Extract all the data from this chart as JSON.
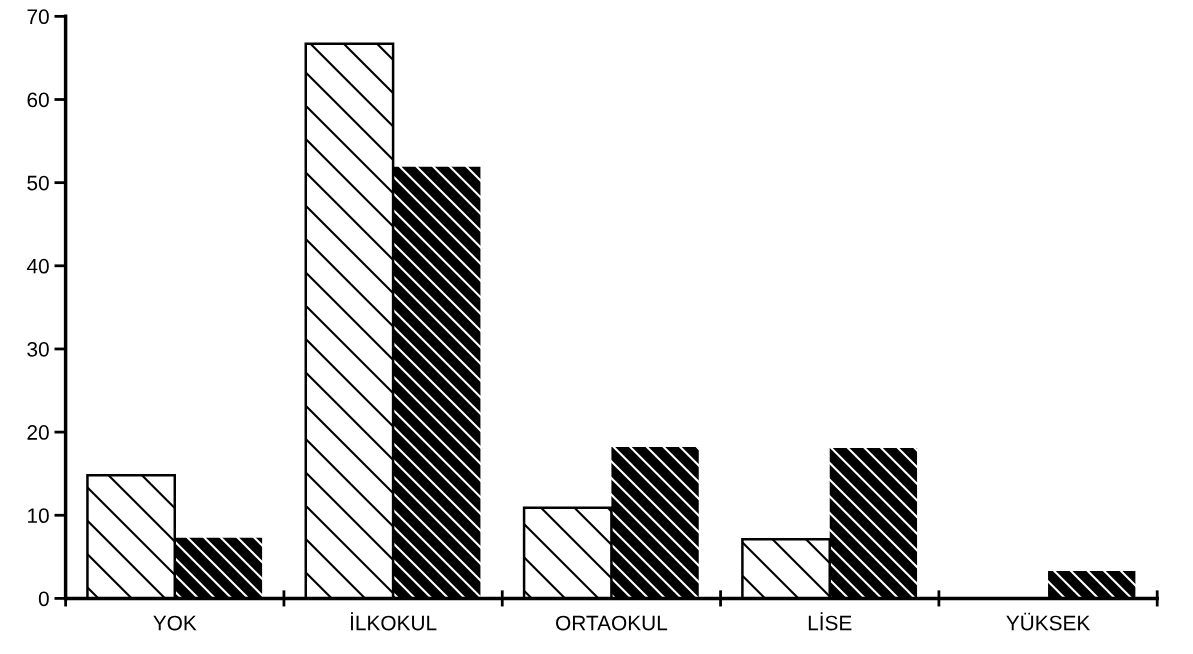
{
  "chart_data": {
    "type": "bar",
    "categories": [
      "YOK",
      "İLKOKUL",
      "ORTAOKUL",
      "LİSE",
      "YÜKSEK"
    ],
    "series": [
      {
        "color": "#ffffff",
        "values": [
          14.8,
          66.7,
          10.9,
          7.1,
          0
        ]
      },
      {
        "color": "#000000",
        "values": [
          7.3,
          51.9,
          18.2,
          18.1,
          3.3
        ]
      }
    ],
    "ylim": [
      0,
      70
    ],
    "yticks": [
      0,
      10,
      20,
      30,
      40,
      50,
      60,
      70
    ],
    "grid": false
  }
}
